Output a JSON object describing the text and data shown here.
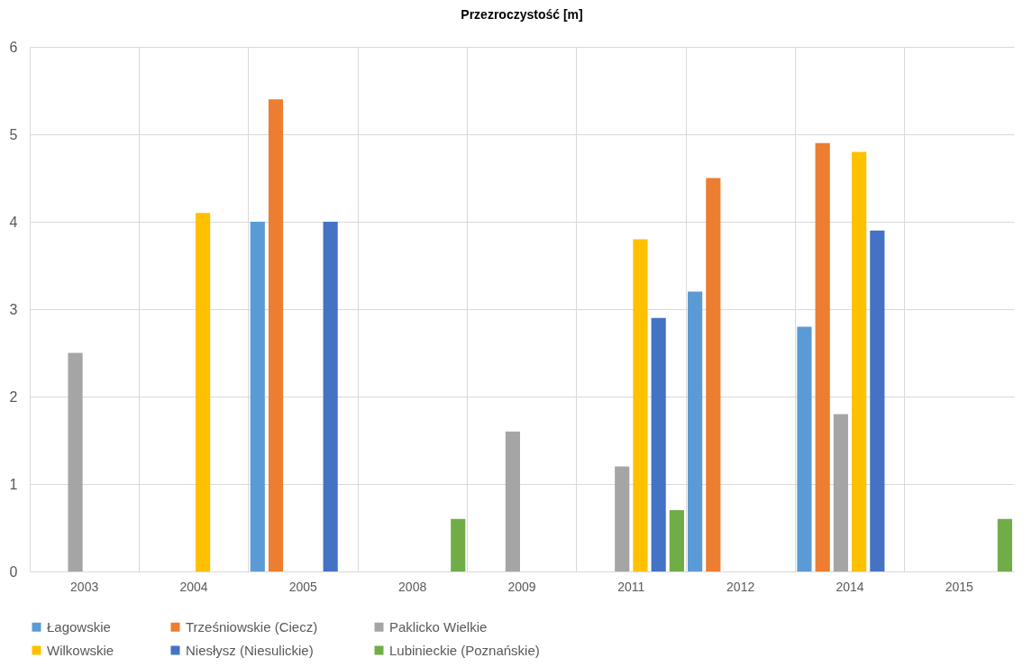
{
  "chart_data": {
    "type": "bar",
    "title": "Przezroczystość [m]",
    "categories": [
      "2003",
      "2004",
      "2005",
      "2008",
      "2009",
      "2011",
      "2012",
      "2014",
      "2015"
    ],
    "series": [
      {
        "name": "Łagowskie",
        "color": "#5b9bd5",
        "values": [
          null,
          null,
          4.0,
          null,
          null,
          null,
          3.2,
          2.8,
          null
        ]
      },
      {
        "name": "Trześniowskie (Ciecz)",
        "color": "#ed7d31",
        "values": [
          null,
          null,
          5.4,
          null,
          null,
          null,
          4.5,
          4.9,
          null
        ]
      },
      {
        "name": "Paklicko Wielkie",
        "color": "#a5a5a5",
        "values": [
          2.5,
          null,
          null,
          null,
          1.6,
          1.2,
          null,
          1.8,
          null
        ]
      },
      {
        "name": "Wilkowskie",
        "color": "#ffc000",
        "values": [
          null,
          4.1,
          null,
          null,
          null,
          3.8,
          null,
          4.8,
          null
        ]
      },
      {
        "name": "Niesłysz (Niesulickie)",
        "color": "#4472c4",
        "values": [
          null,
          null,
          4.0,
          null,
          null,
          2.9,
          null,
          3.9,
          null
        ]
      },
      {
        "name": "Lubinieckie (Poznańskie)",
        "color": "#70ad47",
        "values": [
          null,
          null,
          null,
          0.6,
          null,
          0.7,
          null,
          null,
          0.6
        ]
      }
    ],
    "ylim": [
      0,
      6
    ],
    "yticks": [
      0,
      1,
      2,
      3,
      4,
      5,
      6
    ],
    "grid": true,
    "legend": "bottom"
  }
}
